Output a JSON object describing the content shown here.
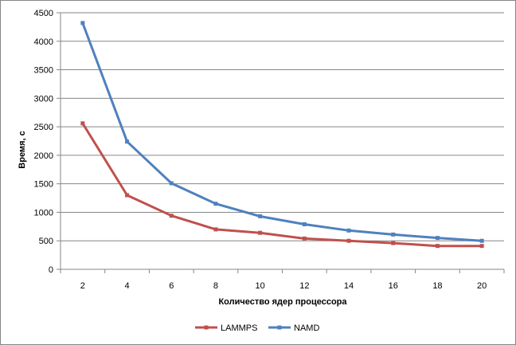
{
  "chart_data": {
    "type": "line",
    "title": "",
    "xlabel": "Количество  ядер процессора",
    "ylabel": "Время, с",
    "x": [
      2,
      4,
      6,
      8,
      10,
      12,
      14,
      16,
      18,
      20
    ],
    "ylim": [
      0,
      4500
    ],
    "yticks": [
      0,
      500,
      1000,
      1500,
      2000,
      2500,
      3000,
      3500,
      4000,
      4500
    ],
    "grid": true,
    "legend_position": "bottom",
    "series": [
      {
        "name": "LAMMPS",
        "color": "#c0504d",
        "values": [
          2560,
          1300,
          940,
          700,
          640,
          540,
          500,
          460,
          410,
          410
        ]
      },
      {
        "name": "NAMD",
        "color": "#4f81bd",
        "values": [
          4320,
          2240,
          1510,
          1150,
          930,
          790,
          680,
          610,
          550,
          500
        ]
      }
    ]
  }
}
